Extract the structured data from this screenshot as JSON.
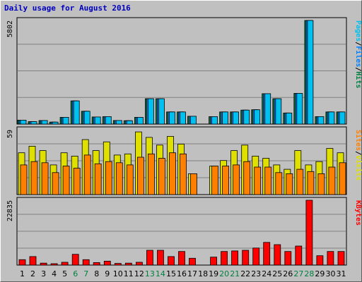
{
  "title": "Daily usage for August 2016",
  "colors": {
    "background": "#c0c0c0",
    "title": "#0000c0",
    "pages": "#00c0f0",
    "files": "#0080ff",
    "hits": "#008040",
    "sites": "#ff8000",
    "visits": "#e0e000",
    "kbytes": "#ff0000",
    "weekend": "#008040"
  },
  "chart_data": [
    {
      "type": "bar",
      "panel": "hits",
      "ymax_label": "5802",
      "ylim": [
        0,
        5802
      ],
      "legend": [
        {
          "name": "Pages",
          "color": "#00c0f0"
        },
        {
          "name": "/",
          "color": "#000000"
        },
        {
          "name": "Files",
          "color": "#0080ff"
        },
        {
          "name": "/",
          "color": "#000000"
        },
        {
          "name": "Hits",
          "color": "#008040"
        }
      ],
      "series": [
        {
          "name": "Hits",
          "values": [
            220,
            140,
            200,
            110,
            380,
            1300,
            720,
            400,
            420,
            200,
            190,
            380,
            1420,
            1420,
            680,
            680,
            440,
            0,
            420,
            680,
            680,
            780,
            800,
            1700,
            1420,
            620,
            1720,
            5802,
            420,
            680,
            680
          ]
        },
        {
          "name": "Files",
          "values": [
            220,
            140,
            200,
            110,
            380,
            1300,
            720,
            400,
            420,
            200,
            190,
            380,
            1420,
            1420,
            680,
            680,
            440,
            0,
            420,
            680,
            680,
            780,
            800,
            1700,
            1420,
            620,
            1720,
            5802,
            420,
            680,
            680
          ]
        },
        {
          "name": "Pages",
          "values": [
            220,
            140,
            200,
            110,
            380,
            1300,
            720,
            400,
            420,
            200,
            190,
            380,
            1420,
            1420,
            680,
            680,
            440,
            0,
            420,
            680,
            680,
            780,
            800,
            1700,
            1420,
            620,
            1720,
            5802,
            420,
            680,
            680
          ]
        }
      ]
    },
    {
      "type": "bar",
      "panel": "visits",
      "ymax_label": "59",
      "ylim": [
        0,
        59
      ],
      "legend": [
        {
          "name": "Sites",
          "color": "#ff8000"
        },
        {
          "name": "/",
          "color": "#000000"
        },
        {
          "name": "Visits",
          "color": "#e0e000"
        }
      ],
      "series": [
        {
          "name": "Visits",
          "values": [
            38,
            44,
            40,
            27,
            38,
            35,
            50,
            40,
            48,
            36,
            37,
            57,
            52,
            45,
            53,
            46,
            19,
            0,
            26,
            31,
            40,
            45,
            35,
            33,
            27,
            23,
            40,
            27,
            30,
            42,
            38
          ]
        },
        {
          "name": "Sites",
          "values": [
            27,
            30,
            29,
            20,
            26,
            24,
            36,
            28,
            30,
            29,
            27,
            34,
            37,
            33,
            38,
            37,
            19,
            0,
            26,
            26,
            27,
            30,
            25,
            25,
            20,
            19,
            23,
            21,
            19,
            25,
            29
          ]
        }
      ]
    },
    {
      "type": "bar",
      "panel": "kbytes",
      "ymax_label": "22835",
      "ylim": [
        0,
        22835
      ],
      "legend": [
        {
          "name": "KBytes",
          "color": "#ff0000"
        }
      ],
      "series": [
        {
          "name": "KBytes",
          "values": [
            1900,
            3000,
            700,
            500,
            1000,
            3800,
            1900,
            900,
            1400,
            600,
            700,
            1000,
            5200,
            5200,
            3000,
            4800,
            2400,
            0,
            2800,
            4800,
            5000,
            5200,
            6000,
            8000,
            7200,
            4800,
            6700,
            22835,
            3300,
            4800,
            4800
          ]
        }
      ]
    }
  ],
  "days": [
    "1",
    "2",
    "3",
    "4",
    "5",
    "6",
    "7",
    "8",
    "9",
    "10",
    "11",
    "12",
    "13",
    "14",
    "15",
    "16",
    "17",
    "18",
    "19",
    "20",
    "21",
    "22",
    "23",
    "24",
    "25",
    "26",
    "27",
    "28",
    "29",
    "30",
    "31"
  ],
  "weekend_days": [
    6,
    7,
    13,
    14,
    20,
    21,
    27,
    28
  ]
}
